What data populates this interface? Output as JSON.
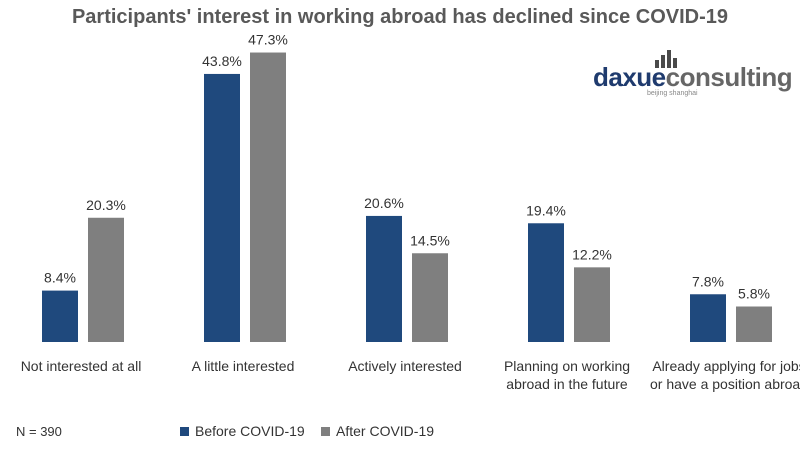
{
  "chart_data": {
    "type": "bar",
    "title": "Participants' interest in working abroad has declined since COVID-19",
    "categories": [
      [
        "Not interested at all"
      ],
      [
        "A little interested"
      ],
      [
        "Actively interested"
      ],
      [
        "Planning on working",
        "abroad in the future"
      ],
      [
        "Already applying for jobs",
        "or have a position abroad"
      ]
    ],
    "series": [
      {
        "name": "Before COVID-19",
        "color": "#1f497d",
        "values": [
          8.4,
          43.8,
          20.6,
          19.4,
          7.8
        ]
      },
      {
        "name": "After COVID-19",
        "color": "#7f7f7f",
        "values": [
          20.3,
          47.3,
          14.5,
          12.2,
          5.8
        ]
      }
    ],
    "value_suffix": "%",
    "ylim": [
      0,
      50
    ],
    "grid": false,
    "legend_position": "bottom"
  },
  "logo": {
    "primary": "daxue",
    "secondary": "consulting",
    "tagline": "beijing shanghai"
  },
  "footer": {
    "sample_size": "N = 390"
  }
}
